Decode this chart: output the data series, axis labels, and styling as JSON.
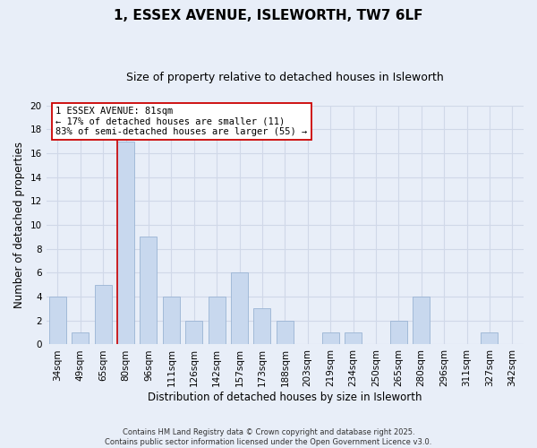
{
  "title": "1, ESSEX AVENUE, ISLEWORTH, TW7 6LF",
  "subtitle": "Size of property relative to detached houses in Isleworth",
  "xlabel": "Distribution of detached houses by size in Isleworth",
  "ylabel": "Number of detached properties",
  "categories": [
    "34sqm",
    "49sqm",
    "65sqm",
    "80sqm",
    "96sqm",
    "111sqm",
    "126sqm",
    "142sqm",
    "157sqm",
    "173sqm",
    "188sqm",
    "203sqm",
    "219sqm",
    "234sqm",
    "250sqm",
    "265sqm",
    "280sqm",
    "296sqm",
    "311sqm",
    "327sqm",
    "342sqm"
  ],
  "values": [
    4,
    1,
    5,
    17,
    9,
    4,
    2,
    4,
    6,
    3,
    2,
    0,
    1,
    1,
    0,
    2,
    4,
    0,
    0,
    1,
    0
  ],
  "bar_color": "#c8d8ee",
  "bar_edge_color": "#9ab4d4",
  "highlight_bar_index": 3,
  "highlight_line_color": "#cc0000",
  "ylim": [
    0,
    20
  ],
  "yticks": [
    0,
    2,
    4,
    6,
    8,
    10,
    12,
    14,
    16,
    18,
    20
  ],
  "annotation_title": "1 ESSEX AVENUE: 81sqm",
  "annotation_line1": "← 17% of detached houses are smaller (11)",
  "annotation_line2": "83% of semi-detached houses are larger (55) →",
  "footer_line1": "Contains HM Land Registry data © Crown copyright and database right 2025.",
  "footer_line2": "Contains public sector information licensed under the Open Government Licence v3.0.",
  "bg_color": "#e8eef8",
  "grid_color": "#d0d8e8",
  "title_fontsize": 11,
  "subtitle_fontsize": 9,
  "axis_label_fontsize": 8.5,
  "tick_fontsize": 7.5,
  "annotation_fontsize": 7.5,
  "footer_fontsize": 6
}
